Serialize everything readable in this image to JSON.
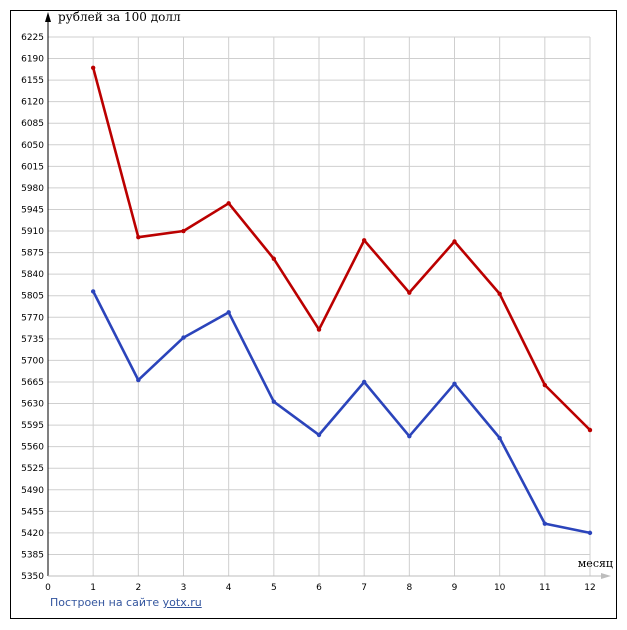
{
  "chart_data": {
    "type": "line",
    "ylabel": "рублей за 100 долл",
    "xlabel": "месяц",
    "x": [
      1,
      2,
      3,
      4,
      5,
      6,
      7,
      8,
      9,
      10,
      11,
      12
    ],
    "x_ticks": [
      0,
      1,
      2,
      3,
      4,
      5,
      6,
      7,
      8,
      9,
      10,
      11,
      12
    ],
    "xlim": [
      0,
      12
    ],
    "y_ticks": [
      5350,
      5385,
      5420,
      5455,
      5490,
      5525,
      5560,
      5595,
      5630,
      5665,
      5700,
      5735,
      5770,
      5805,
      5840,
      5875,
      5910,
      5945,
      5980,
      6015,
      6050,
      6085,
      6120,
      6155,
      6190,
      6225
    ],
    "ylim": [
      5350,
      6225
    ],
    "grid": true,
    "legend": "none",
    "series": [
      {
        "color": "#bb0000",
        "values": [
          6175,
          5900,
          5910,
          5955,
          5865,
          5750,
          5895,
          5810,
          5893,
          5808,
          5660,
          5587
        ]
      },
      {
        "color": "#2b44bb",
        "values": [
          5812,
          5668,
          5737,
          5778,
          5633,
          5579,
          5665,
          5577,
          5662,
          5574,
          5435,
          5420
        ]
      }
    ]
  },
  "footer": {
    "credit_prefix": "Построен на сайте",
    "credit_link": "yotx.ru"
  }
}
